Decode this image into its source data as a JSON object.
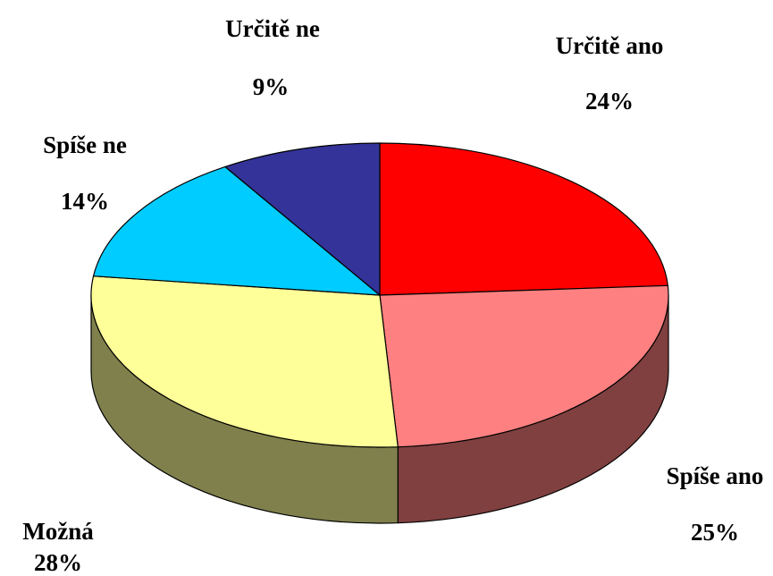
{
  "chart_data": {
    "type": "pie",
    "categories": [
      "Určitě ano",
      "Spíše ano",
      "Možná",
      "Spíše ne",
      "Určitě ne"
    ],
    "values": [
      24,
      25,
      28,
      14,
      9
    ],
    "value_labels": [
      "24%",
      "25%",
      "28%",
      "14%",
      "9%"
    ],
    "colors": [
      "#ff0000",
      "#ff8080",
      "#ffff99",
      "#00ccff",
      "#333399"
    ],
    "three_d": true
  }
}
